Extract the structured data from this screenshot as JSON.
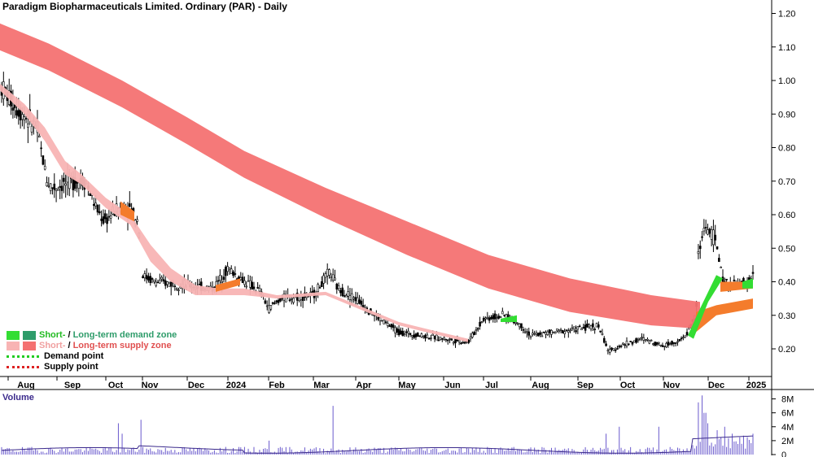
{
  "title": "Paradigm Biopharmaceuticals Limited. Ordinary (PAR) - Daily",
  "volume_label": "Volume",
  "legend": {
    "demand_short": "Short-",
    "demand_sep": " / ",
    "demand_long": "Long-term demand zone",
    "supply_short": "Short-",
    "supply_sep": " / ",
    "supply_long": "Long-term supply zone",
    "demand_point": "Demand point",
    "supply_point": "Supply point"
  },
  "colors": {
    "short_demand": "#33dd33",
    "long_demand": "#2e9c6a",
    "short_supply": "#f8b4b4",
    "long_supply": "#f47272",
    "orange_zone": "#f47c2c",
    "volume": "#6a5acd",
    "volume_ma": "#3b2a8c"
  },
  "chart_data": {
    "type": "candlestick",
    "title": "Paradigm Biopharmaceuticals Limited. Ordinary (PAR) - Daily",
    "x_tick_labels": [
      "Aug",
      "Sep",
      "Oct",
      "Nov",
      "Dec",
      "2024",
      "Feb",
      "Mar",
      "Apr",
      "May",
      "Jun",
      "Jul",
      "Aug",
      "Sep",
      "Oct",
      "Nov",
      "Dec",
      "2025"
    ],
    "y_tick_labels": [
      "1.20",
      "1.10",
      "1.00",
      "0.90",
      "0.80",
      "0.70",
      "0.60",
      "0.50",
      "0.40",
      "0.30",
      "0.20"
    ],
    "ylim": [
      0.12,
      1.24
    ],
    "volume_tick_labels": [
      "8M",
      "6M",
      "4M",
      "2M",
      "0"
    ],
    "volume_ylim": [
      0,
      9
    ],
    "price_approx": {
      "months": [
        "Aug",
        "Sep",
        "Oct",
        "Nov",
        "Dec",
        "2024",
        "Feb",
        "Mar",
        "Apr",
        "May",
        "Jun",
        "Jul",
        "Aug",
        "Sep",
        "Oct",
        "Nov",
        "Dec",
        "2025"
      ],
      "close": [
        0.92,
        0.7,
        0.62,
        0.4,
        0.38,
        0.45,
        0.35,
        0.42,
        0.33,
        0.26,
        0.23,
        0.3,
        0.24,
        0.26,
        0.21,
        0.23,
        0.5,
        0.42
      ]
    },
    "long_term_supply_zone": {
      "upper": [
        1.17,
        0.34
      ],
      "lower": [
        1.09,
        0.26
      ]
    },
    "short_term_supply_zone": {
      "start_upper": 0.98,
      "start_lower": 0.94
    }
  }
}
